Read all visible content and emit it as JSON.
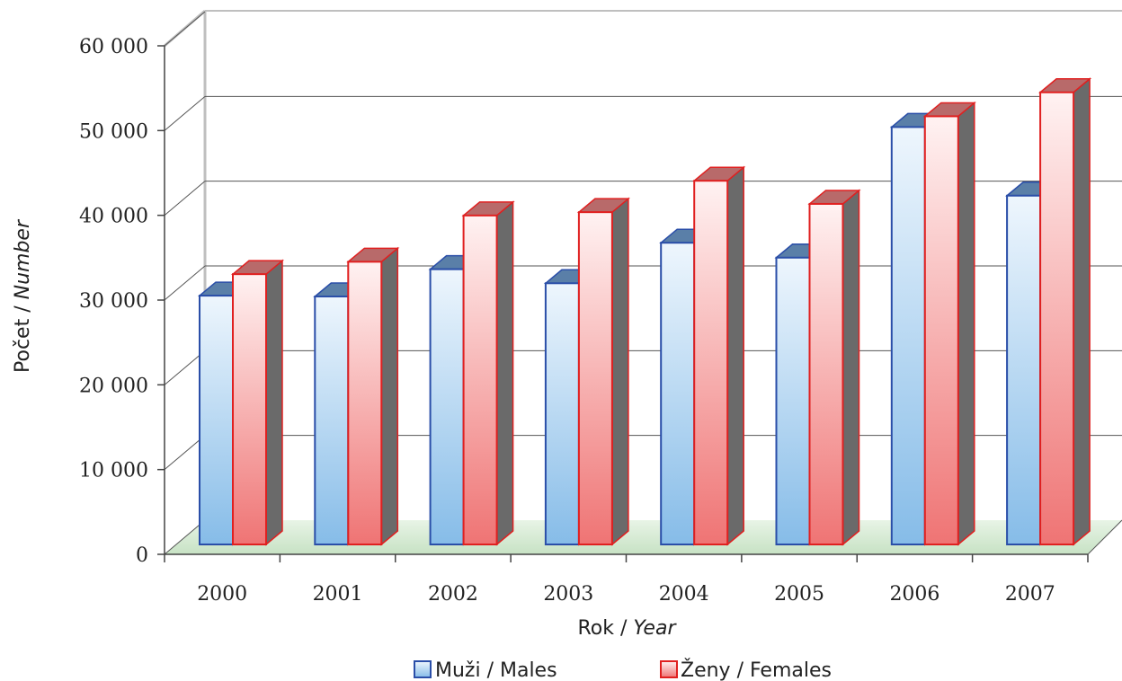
{
  "chart_data": {
    "type": "bar",
    "categories": [
      "2000",
      "2001",
      "2002",
      "2003",
      "2004",
      "2005",
      "2006",
      "2007"
    ],
    "series": [
      {
        "name": "Muži / Males",
        "values": [
          30100,
          30000,
          33300,
          31600,
          36500,
          34700,
          50500,
          42200
        ]
      },
      {
        "name": "Ženy / Females",
        "values": [
          32700,
          34200,
          39800,
          40200,
          44000,
          41200,
          51800,
          54700
        ]
      }
    ],
    "yticks": [
      "0",
      "10 000",
      "20 000",
      "30 000",
      "40 000",
      "50 000",
      "60 000"
    ],
    "ylim": [
      0,
      60000
    ],
    "xlabel_main": "Rok / ",
    "xlabel_italic": "Year",
    "ylabel_main": "Počet / ",
    "ylabel_italic": "Number",
    "grid": true,
    "legend_position": "bottom",
    "colors": {
      "males_light": "#e8f2fb",
      "males_dark": "#88bde8",
      "males_edge": "#2a4ea8",
      "females_light": "#fff0f0",
      "females_dark": "#f07a7a",
      "females_edge": "#e02020",
      "floor": "#dceedd",
      "side": "#6a6a6a",
      "top_blue": "#5a7fa8",
      "top_red": "#b86a6a"
    }
  }
}
